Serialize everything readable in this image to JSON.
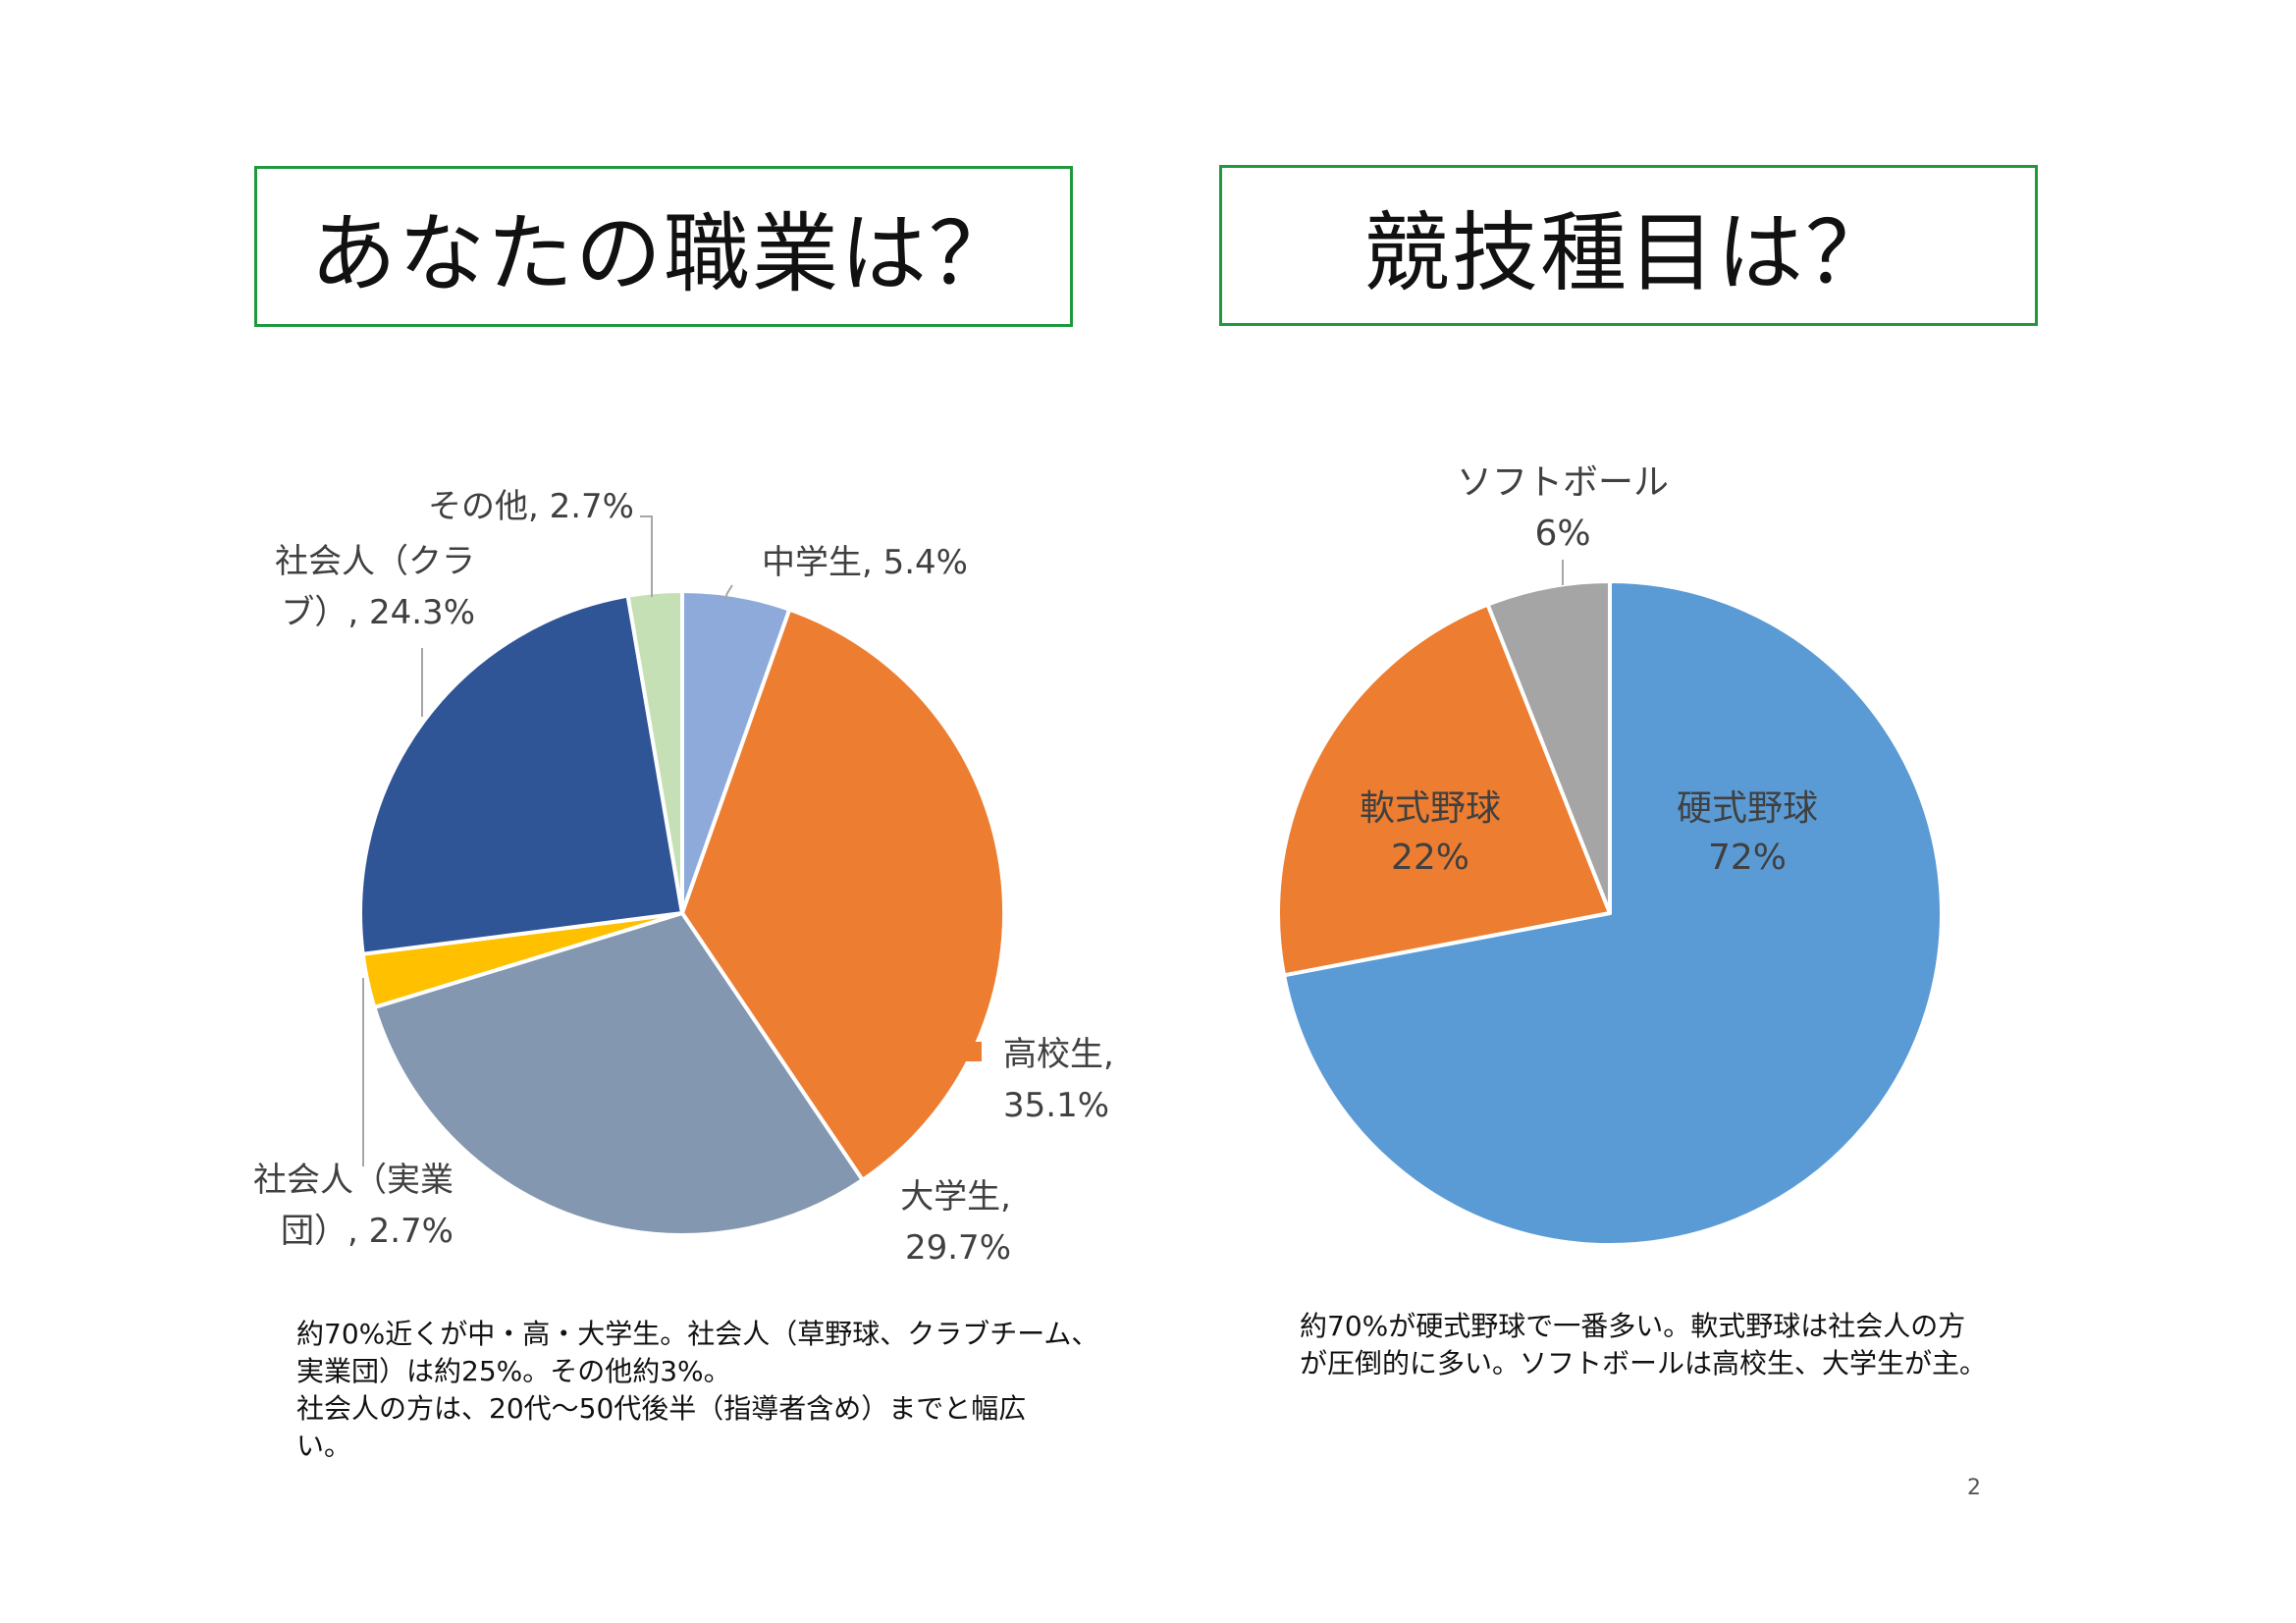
{
  "page": {
    "left_title": "あなたの職業は？",
    "right_title": "競技種目は？",
    "left_note": "約70%近くが中・高・大学生。社会人（草野球、クラブチーム、\n実業団）は約25%。その他約3%。\n社会人の方は、20代～50代後半（指導者含め）までと幅広\nい。",
    "right_note": "約70%が硬式野球で一番多い。軟式野球は社会人の方\nが圧倒的に多い。ソフトボールは高校生、大学生が主。",
    "page_number": "2"
  },
  "chart_data": [
    {
      "type": "pie",
      "slices": [
        {
          "label": "中学生",
          "value": 5.4,
          "display": [
            "中学生, 5.4%"
          ],
          "color": "#8eaadb"
        },
        {
          "label": "高校生",
          "value": 35.1,
          "display": [
            "高校生,",
            "35.1%"
          ],
          "color": "#ed7d31"
        },
        {
          "label": "大学生",
          "value": 29.7,
          "display": [
            "大学生,",
            "29.7%"
          ],
          "color": "#8497b0"
        },
        {
          "label": "社会人（実業団）",
          "value": 2.7,
          "display": [
            "社会人（実業",
            "団）, 2.7%"
          ],
          "color": "#ffc000"
        },
        {
          "label": "社会人（クラブ）",
          "value": 24.3,
          "display": [
            "社会人（クラ",
            "ブ）, 24.3%"
          ],
          "color": "#2f5597"
        },
        {
          "label": "その他",
          "value": 2.7,
          "display": [
            "その他, 2.7%"
          ],
          "color": "#c5e0b4"
        }
      ]
    },
    {
      "type": "pie",
      "slices": [
        {
          "label": "硬式野球",
          "value": 72,
          "display": [
            "硬式野球",
            "72%"
          ],
          "color": "#5b9bd5"
        },
        {
          "label": "軟式野球",
          "value": 22,
          "display": [
            "軟式野球",
            "22%"
          ],
          "color": "#ed7d31"
        },
        {
          "label": "ソフトボール",
          "value": 6,
          "display": [
            "ソフトボール",
            "6%"
          ],
          "color": "#a5a5a5"
        }
      ]
    }
  ]
}
